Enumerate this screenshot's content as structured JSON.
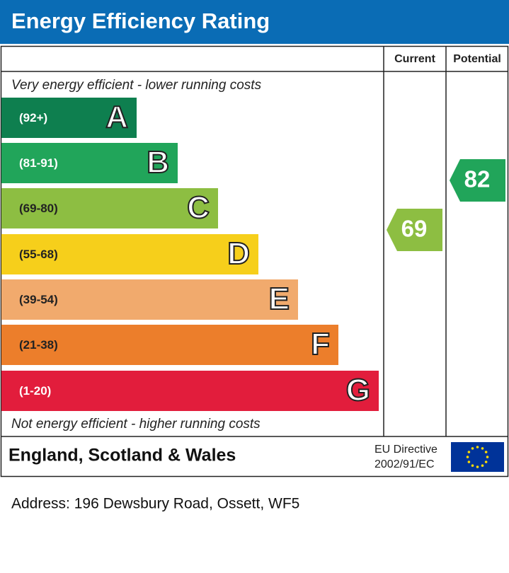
{
  "header": {
    "title": "Energy Efficiency Rating"
  },
  "columns": {
    "current": "Current",
    "potential": "Potential"
  },
  "top_note": "Very energy efficient - lower running costs",
  "bands": [
    {
      "range": "(92+)",
      "letter": "A",
      "color": "#0e7f4f"
    },
    {
      "range": "(81-91)",
      "letter": "B",
      "color": "#21a55a"
    },
    {
      "range": "(69-80)",
      "letter": "C",
      "color": "#8dbe42"
    },
    {
      "range": "(55-68)",
      "letter": "D",
      "color": "#f6cf1b"
    },
    {
      "range": "(39-54)",
      "letter": "E",
      "color": "#f1aa6d"
    },
    {
      "range": "(21-38)",
      "letter": "F",
      "color": "#ec7e2b"
    },
    {
      "range": "(1-20)",
      "letter": "G",
      "color": "#e21d3c"
    }
  ],
  "bottom_note": "Not energy efficient - higher running costs",
  "current": {
    "value": 69,
    "color": "#8dbe42"
  },
  "potential": {
    "value": 82,
    "color": "#21a55a"
  },
  "footer": {
    "region": "England, Scotland & Wales",
    "directive": [
      "EU Directive",
      "2002/91/EC"
    ]
  },
  "address": "Address: 196 Dewsbury Road, Ossett, WF5"
}
